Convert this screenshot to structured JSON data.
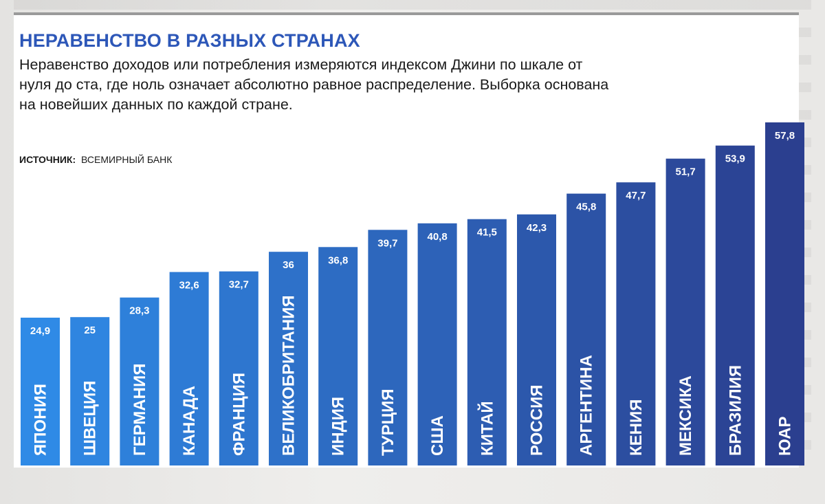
{
  "header": {
    "title": "НЕРАВЕНСТВО В РАЗНЫХ СТРАНАХ",
    "subtitle": "Неравенство доходов или потребления измеряются индексом Джини по шкале от нуля до ста, где ноль означает абсолютно равное распределение. Выборка основана на новейших данных по каждой стране.",
    "source_label": "ИСТОЧНИК:",
    "source_value": "ВСЕМИРНЫЙ БАНК"
  },
  "chart_data": {
    "type": "bar",
    "title": "НЕРАВЕНСТВО В РАЗНЫХ СТРАНАХ",
    "xlabel": "",
    "ylabel": "",
    "grid": false,
    "legend": "none",
    "categories": [
      "ЯПОНИЯ",
      "ШВЕЦИЯ",
      "ГЕРМАНИЯ",
      "КАНАДА",
      "ФРАНЦИЯ",
      "ВЕЛИКОБРИТАНИЯ",
      "ИНДИЯ",
      "ТУРЦИЯ",
      "США",
      "КИТАЙ",
      "РОССИЯ",
      "АРГЕНТИНА",
      "КЕНИЯ",
      "МЕКСИКА",
      "БРАЗИЛИЯ",
      "ЮАР"
    ],
    "values": [
      24.9,
      25,
      28.3,
      32.6,
      32.7,
      36,
      36.8,
      39.7,
      40.8,
      41.5,
      42.3,
      45.8,
      47.7,
      51.7,
      53.9,
      57.8
    ],
    "value_labels": [
      "24,9",
      "25",
      "28,3",
      "32,6",
      "32,7",
      "36",
      "36,8",
      "39,7",
      "40,8",
      "41,5",
      "42,3",
      "45,8",
      "47,7",
      "51,7",
      "53,9",
      "57,8"
    ],
    "ylim": [
      0,
      60
    ],
    "colors": {
      "bar_start": "#2f8ae6",
      "bar_end": "#2b3f8f",
      "label": "#ffffff",
      "title": "#2d57b8"
    }
  }
}
